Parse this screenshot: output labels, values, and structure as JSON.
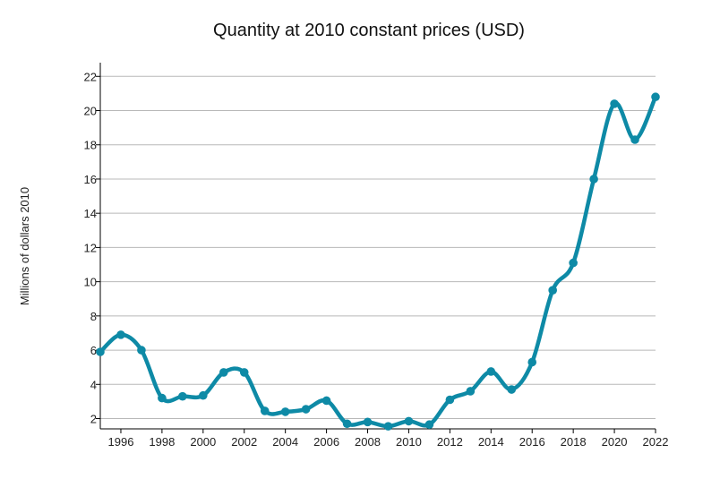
{
  "chart_data": {
    "type": "line",
    "title": "Quantity at 2010 constant prices (USD)",
    "xlabel": "",
    "ylabel": "Millions of dollars 2010",
    "xlim": [
      1995,
      2022
    ],
    "ylim": [
      1.4,
      22.8
    ],
    "xticks": [
      1996,
      1998,
      2000,
      2002,
      2004,
      2006,
      2008,
      2010,
      2012,
      2014,
      2016,
      2018,
      2020,
      2022
    ],
    "yticks": [
      2,
      4,
      6,
      8,
      10,
      12,
      14,
      16,
      18,
      20,
      22
    ],
    "grid": "horizontal",
    "legend": "none",
    "color": "#0e8aa6",
    "series": [
      {
        "x": [
          1995,
          1996,
          1997,
          1998,
          1999,
          2000,
          2001,
          2002,
          2003,
          2004,
          2005,
          2006,
          2007,
          2008,
          2009,
          2010,
          2011,
          2012,
          2013,
          2014,
          2015,
          2016,
          2017,
          2018,
          2019,
          2020,
          2021,
          2022
        ],
        "values": [
          5.9,
          6.9,
          6.0,
          3.2,
          3.3,
          3.35,
          4.7,
          4.7,
          2.45,
          2.4,
          2.55,
          3.05,
          1.7,
          1.8,
          1.55,
          1.85,
          1.65,
          3.1,
          3.6,
          4.75,
          3.7,
          5.3,
          9.5,
          11.1,
          16.0,
          20.4,
          18.3,
          20.8
        ]
      }
    ]
  }
}
